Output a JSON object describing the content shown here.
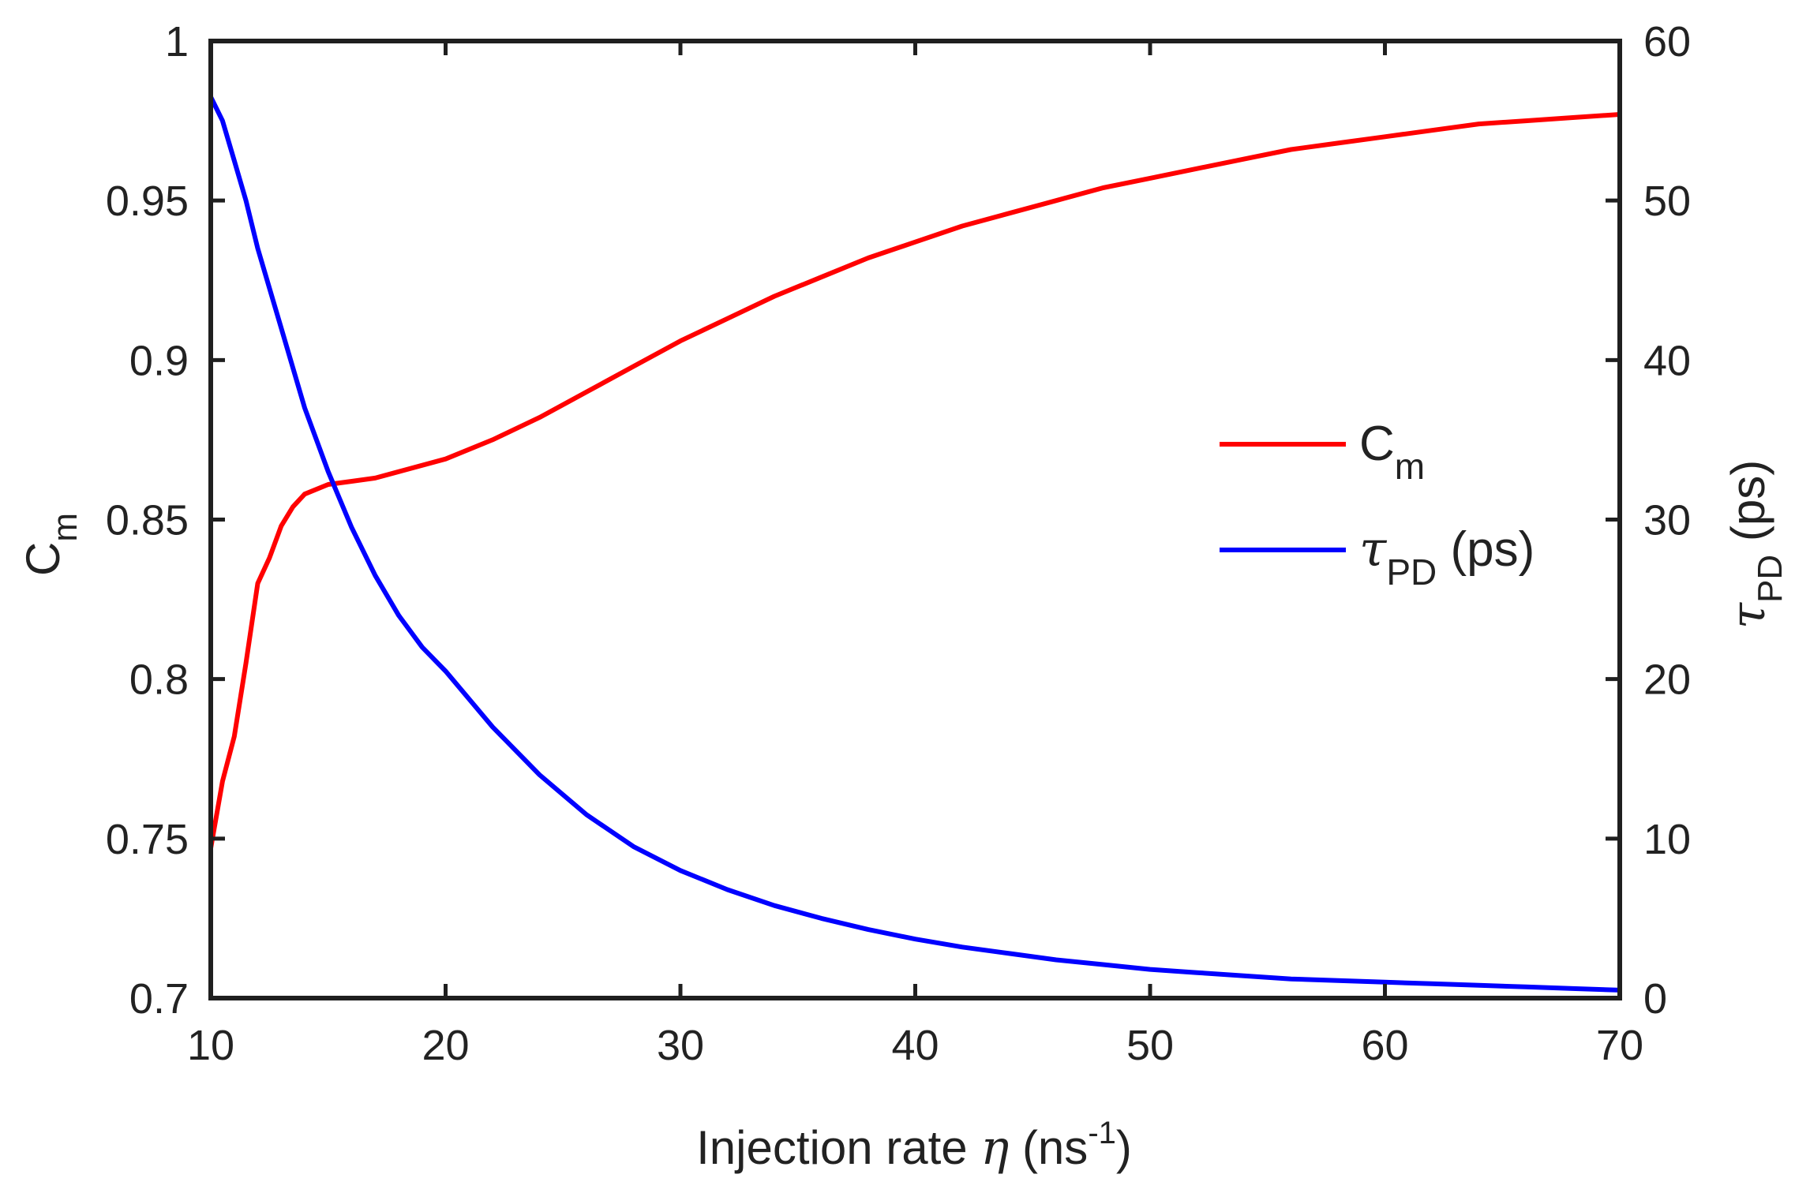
{
  "chart_data": {
    "type": "line",
    "title": "",
    "xlabel": "Injection rate",
    "xlabel_symbol": "η",
    "xlabel_unit_open": " (ns",
    "xlabel_unit_exp": "-1",
    "xlabel_unit_close": ")",
    "xlim": [
      10,
      70
    ],
    "x_ticks": [
      "10",
      "20",
      "30",
      "40",
      "50",
      "60",
      "70"
    ],
    "left_axis": {
      "label_main": "C",
      "label_sub": "m",
      "ylim": [
        0.7,
        1.0
      ],
      "ticks": [
        "0.7",
        "0.75",
        "0.8",
        "0.85",
        "0.9",
        "0.95",
        "1"
      ]
    },
    "right_axis": {
      "label_symbol": "τ",
      "label_sub": "PD",
      "label_unit": " (ps)",
      "ylim": [
        0,
        60
      ],
      "ticks": [
        "0",
        "10",
        "20",
        "30",
        "40",
        "50",
        "60"
      ]
    },
    "grid": false,
    "legend_position": "right-center",
    "series": [
      {
        "name": "C_m",
        "legend_main": "C",
        "legend_sub": "m",
        "legend_unit": "",
        "axis": "left",
        "color": "#ff0000",
        "x": [
          10,
          10.5,
          11,
          11.5,
          12,
          12.5,
          13,
          13.5,
          14,
          15,
          16,
          17,
          18,
          20,
          22,
          24,
          26,
          28,
          30,
          32,
          34,
          36,
          38,
          40,
          42,
          44,
          46,
          48,
          50,
          52,
          54,
          56,
          58,
          60,
          62,
          64,
          66,
          68,
          70
        ],
        "values": [
          0.747,
          0.768,
          0.782,
          0.805,
          0.83,
          0.838,
          0.848,
          0.854,
          0.858,
          0.861,
          0.862,
          0.863,
          0.865,
          0.869,
          0.875,
          0.882,
          0.89,
          0.898,
          0.906,
          0.913,
          0.92,
          0.926,
          0.932,
          0.937,
          0.942,
          0.946,
          0.95,
          0.954,
          0.957,
          0.96,
          0.963,
          0.966,
          0.968,
          0.97,
          0.972,
          0.974,
          0.975,
          0.976,
          0.977
        ]
      },
      {
        "name": "tau_PD (ps)",
        "legend_main": "τ",
        "legend_sub": "PD",
        "legend_unit": " (ps)",
        "axis": "right",
        "color": "#0000ff",
        "x": [
          10,
          10.5,
          11,
          11.5,
          12,
          12.5,
          13,
          14,
          15,
          16,
          17,
          18,
          19,
          20,
          22,
          24,
          26,
          28,
          30,
          32,
          34,
          36,
          38,
          40,
          42,
          44,
          46,
          48,
          50,
          52,
          54,
          56,
          58,
          60,
          62,
          64,
          66,
          68,
          70
        ],
        "values": [
          56.5,
          55.0,
          52.5,
          50.0,
          47.0,
          44.5,
          42.0,
          37.0,
          33.0,
          29.5,
          26.5,
          24.0,
          22.0,
          20.5,
          17.0,
          14.0,
          11.5,
          9.5,
          8.0,
          6.8,
          5.8,
          5.0,
          4.3,
          3.7,
          3.2,
          2.8,
          2.4,
          2.1,
          1.8,
          1.6,
          1.4,
          1.2,
          1.1,
          1.0,
          0.9,
          0.8,
          0.7,
          0.6,
          0.5
        ]
      }
    ]
  }
}
